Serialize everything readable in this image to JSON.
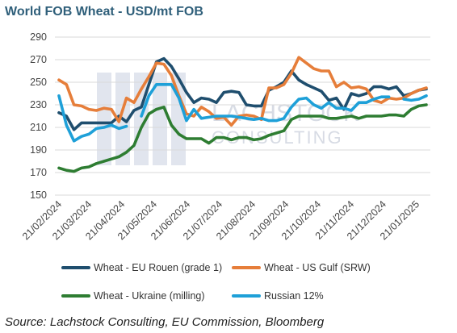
{
  "title": "World FOB Wheat - USD/mt FOB",
  "source": "Source: Lachstock Consulting, EU Commission, Bloomberg",
  "watermark": {
    "line1": "LACHSTOCK",
    "line2": "CONSULTING"
  },
  "chart_data": {
    "type": "line",
    "title": "World FOB Wheat - USD/mt FOB",
    "xlabel": "",
    "ylabel": "",
    "ylim": [
      150,
      290
    ],
    "yticks": [
      150,
      170,
      190,
      210,
      230,
      250,
      270,
      290
    ],
    "grid": "horizontal",
    "legend_position": "bottom",
    "x_tick_labels": [
      "21/02/2024",
      "21/03/2024",
      "21/04/2024",
      "21/05/2024",
      "21/06/2024",
      "21/07/2024",
      "21/08/2024",
      "21/09/2024",
      "21/10/2024",
      "21/11/2024",
      "21/12/2024",
      "21/01/2025"
    ],
    "x_tick_positions": [
      0,
      4,
      8.43,
      12.71,
      17.14,
      21.43,
      25.86,
      30.29,
      34.57,
      39,
      43.29,
      47.71
    ],
    "x_units": "weeks from 21/02/2024",
    "series": [
      {
        "name": "Wheat - EU Rouen (grade 1)",
        "color": "#1f4e6e",
        "x": [
          0,
          1,
          2,
          3,
          4,
          5,
          6,
          7,
          8,
          9,
          10,
          11,
          12,
          13,
          14,
          15,
          16,
          17,
          18,
          19,
          20,
          21,
          22,
          23,
          24,
          25,
          26,
          27,
          28,
          29,
          30,
          31,
          32,
          33,
          34,
          35,
          36,
          37,
          38,
          39,
          40,
          41,
          42,
          43,
          44,
          45,
          46,
          47,
          48,
          49
        ],
        "values": [
          223,
          220,
          208,
          214,
          214,
          214,
          214,
          214,
          220,
          215,
          225,
          228,
          248,
          268,
          271,
          264,
          253,
          241,
          232,
          236,
          235,
          232,
          241,
          242,
          241,
          230,
          229,
          229,
          243,
          246,
          250,
          260,
          252,
          248,
          245,
          242,
          234,
          236,
          226,
          240,
          238,
          240,
          246,
          246,
          244,
          246,
          238,
          240,
          243,
          244
        ]
      },
      {
        "name": "Wheat - US Gulf (SRW)",
        "color": "#e67e3a",
        "x": [
          0,
          1,
          2,
          3,
          4,
          5,
          6,
          7,
          8,
          9,
          10,
          11,
          12,
          13,
          14,
          15,
          16,
          17,
          18,
          19,
          20,
          21,
          22,
          23,
          24,
          25,
          26,
          27,
          28,
          29,
          30,
          31,
          32,
          33,
          34,
          35,
          36,
          37,
          38,
          39,
          40,
          41,
          42,
          43,
          44,
          45,
          46,
          47,
          48,
          49
        ],
        "values": [
          252,
          248,
          230,
          229,
          226,
          225,
          227,
          226,
          215,
          236,
          232,
          244,
          255,
          267,
          266,
          256,
          238,
          222,
          220,
          228,
          224,
          218,
          219,
          212,
          220,
          221,
          220,
          217,
          245,
          245,
          248,
          258,
          272,
          267,
          262,
          260,
          260,
          246,
          250,
          245,
          246,
          244,
          234,
          232,
          236,
          235,
          236,
          240,
          243,
          245
        ]
      },
      {
        "name": "Wheat - Ukraine (milling)",
        "color": "#2e7d32",
        "x": [
          0,
          1,
          2,
          3,
          4,
          5,
          6,
          7,
          8,
          9,
          10,
          11,
          12,
          13,
          14,
          15,
          16,
          17,
          18,
          19,
          20,
          21,
          22,
          23,
          24,
          25,
          26,
          27,
          28,
          29,
          30,
          31,
          32,
          33,
          34,
          35,
          36,
          37,
          38,
          39,
          40,
          41,
          42,
          43,
          44,
          45,
          46,
          47,
          48,
          49
        ],
        "values": [
          174,
          172,
          171,
          174,
          175,
          178,
          180,
          182,
          184,
          188,
          194,
          210,
          222,
          226,
          228,
          212,
          204,
          200,
          200,
          200,
          196,
          201,
          201,
          199,
          201,
          201,
          199,
          200,
          203,
          205,
          207,
          217,
          220,
          220,
          220,
          220,
          218,
          218,
          219,
          220,
          218,
          220,
          220,
          220,
          221,
          221,
          220,
          226,
          229,
          230
        ]
      },
      {
        "name": "Russian 12%",
        "color": "#1ea0d8",
        "x": [
          0,
          1,
          2,
          3,
          4,
          5,
          6,
          7,
          8,
          9,
          null,
          11,
          12,
          13,
          14,
          15,
          16,
          17,
          18,
          19,
          20,
          21,
          22,
          23,
          24,
          25,
          26,
          27,
          28,
          29,
          30,
          31,
          32,
          33,
          34,
          35,
          36,
          37,
          38,
          39,
          40,
          41,
          42,
          43,
          44,
          null,
          46,
          47,
          48,
          49
        ],
        "values": [
          238,
          212,
          198,
          202,
          204,
          209,
          210,
          212,
          209,
          211,
          null,
          220,
          238,
          248,
          248,
          248,
          236,
          216,
          226,
          218,
          219,
          220,
          220,
          220,
          219,
          218,
          217,
          218,
          216,
          216,
          218,
          228,
          235,
          236,
          230,
          227,
          232,
          227,
          227,
          225,
          232,
          232,
          235,
          237,
          237,
          null,
          235,
          234,
          235,
          238
        ]
      }
    ]
  },
  "legend": [
    {
      "label": "Wheat - EU Rouen (grade 1)",
      "color": "#1f4e6e"
    },
    {
      "label": "Wheat - US Gulf (SRW)",
      "color": "#e67e3a"
    },
    {
      "label": "Wheat - Ukraine (milling)",
      "color": "#2e7d32"
    },
    {
      "label": "Russian 12%",
      "color": "#1ea0d8"
    }
  ]
}
